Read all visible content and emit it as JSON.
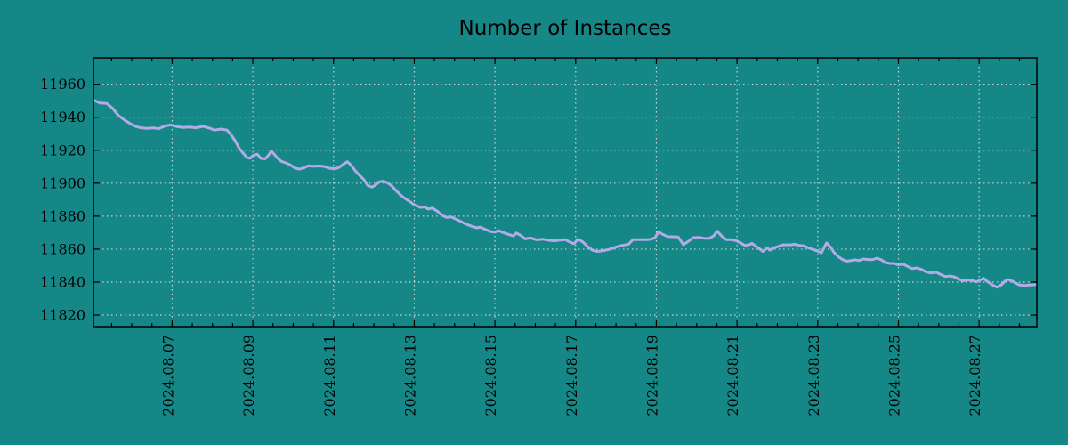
{
  "title": "Number of Instances",
  "colors": {
    "background": "#168787",
    "line": "#b3aae6",
    "grid": "#dcdcdc",
    "frame": "#000000",
    "text": "#000000"
  },
  "chart_data": {
    "type": "line",
    "title": "Number of Instances",
    "xlabel": "",
    "ylabel": "",
    "grid": "dotted",
    "legend": "none",
    "x_axis": {
      "unit": "date (August 2024, day of month)",
      "lim": [
        5.05,
        28.43
      ],
      "tick_days": [
        7,
        9,
        11,
        13,
        15,
        17,
        19,
        21,
        23,
        25,
        27
      ],
      "tick_labels": [
        "2024.08.07",
        "2024.08.09",
        "2024.08.11",
        "2024.08.13",
        "2024.08.15",
        "2024.08.17",
        "2024.08.19",
        "2024.08.21",
        "2024.08.23",
        "2024.08.25",
        "2024.08.27"
      ],
      "minor_step_days": 0.5
    },
    "y_axis": {
      "lim": [
        11813,
        11976
      ],
      "ticks": [
        11820,
        11840,
        11860,
        11880,
        11900,
        11920,
        11940,
        11960
      ],
      "tick_labels": [
        "11820",
        "11840",
        "11860",
        "11880",
        "11900",
        "11920",
        "11940",
        "11960"
      ]
    },
    "series": [
      {
        "name": "Number of Instances",
        "x_days": [
          5.05,
          5.21,
          5.38,
          5.52,
          5.67,
          5.82,
          5.98,
          6.09,
          6.22,
          6.38,
          6.53,
          6.66,
          6.84,
          6.97,
          7.13,
          7.28,
          7.43,
          7.59,
          7.77,
          7.92,
          8.05,
          8.21,
          8.36,
          8.45,
          8.56,
          8.67,
          8.76,
          8.85,
          8.93,
          9.02,
          9.11,
          9.2,
          9.31,
          9.4,
          9.46,
          9.55,
          9.62,
          9.71,
          9.82,
          9.93,
          10.04,
          10.15,
          10.26,
          10.37,
          10.5,
          10.63,
          10.76,
          10.9,
          11.01,
          11.12,
          11.23,
          11.34,
          11.43,
          11.54,
          11.65,
          11.76,
          11.84,
          11.95,
          12.04,
          12.13,
          12.24,
          12.35,
          12.44,
          12.55,
          12.66,
          12.77,
          12.88,
          13.01,
          13.15,
          13.26,
          13.34,
          13.45,
          13.57,
          13.68,
          13.79,
          13.92,
          14.03,
          14.14,
          14.27,
          14.42,
          14.56,
          14.64,
          14.76,
          14.89,
          15.0,
          15.09,
          15.22,
          15.35,
          15.46,
          15.53,
          15.64,
          15.75,
          15.88,
          16.03,
          16.19,
          16.34,
          16.48,
          16.63,
          16.74,
          16.85,
          16.96,
          17.05,
          17.18,
          17.29,
          17.42,
          17.53,
          17.67,
          17.82,
          17.95,
          18.08,
          18.2,
          18.31,
          18.42,
          18.57,
          18.72,
          18.86,
          18.97,
          19.05,
          19.16,
          19.28,
          19.41,
          19.54,
          19.67,
          19.8,
          19.91,
          20.07,
          20.18,
          20.31,
          20.42,
          20.51,
          20.62,
          20.73,
          20.86,
          20.97,
          21.08,
          21.19,
          21.3,
          21.37,
          21.48,
          21.64,
          21.75,
          21.81,
          21.92,
          22.03,
          22.14,
          22.32,
          22.43,
          22.54,
          22.65,
          22.8,
          22.98,
          23.09,
          23.22,
          23.33,
          23.4,
          23.51,
          23.62,
          23.73,
          23.84,
          23.91,
          24.02,
          24.13,
          24.28,
          24.37,
          24.46,
          24.57,
          24.68,
          24.79,
          24.9,
          24.99,
          25.12,
          25.23,
          25.34,
          25.45,
          25.56,
          25.67,
          25.8,
          25.94,
          26.05,
          26.16,
          26.27,
          26.38,
          26.49,
          26.6,
          26.71,
          26.82,
          26.93,
          27.04,
          27.11,
          27.22,
          27.33,
          27.44,
          27.55,
          27.66,
          27.72,
          27.88,
          27.99,
          28.14,
          28.27,
          28.43
        ],
        "values": [
          11950.4,
          11948.6,
          11948.3,
          11945.5,
          11941.0,
          11938.3,
          11935.8,
          11934.5,
          11933.6,
          11933.2,
          11933.6,
          11933.0,
          11934.8,
          11935.3,
          11934.2,
          11933.8,
          11934.0,
          11933.6,
          11934.5,
          11933.4,
          11932.2,
          11932.8,
          11932.2,
          11929.8,
          11925.8,
          11920.9,
          11918.2,
          11915.6,
          11915.1,
          11917.0,
          11917.6,
          11915.0,
          11914.8,
          11917.3,
          11919.6,
          11917.0,
          11915.0,
          11913.2,
          11912.3,
          11911.0,
          11909.2,
          11908.5,
          11909.2,
          11910.5,
          11910.3,
          11910.4,
          11910.2,
          11909.0,
          11908.8,
          11909.3,
          11911.3,
          11913.0,
          11911.0,
          11907.5,
          11904.6,
          11902.0,
          11898.8,
          11897.6,
          11898.8,
          11900.8,
          11901.2,
          11900.0,
          11898.5,
          11895.5,
          11892.8,
          11890.8,
          11889.0,
          11886.8,
          11885.3,
          11885.6,
          11884.3,
          11884.9,
          11883.0,
          11880.6,
          11879.3,
          11879.5,
          11878.2,
          11877.0,
          11875.3,
          11873.9,
          11872.9,
          11873.4,
          11872.0,
          11870.7,
          11870.4,
          11871.2,
          11869.9,
          11868.8,
          11868.0,
          11869.8,
          11868.3,
          11866.2,
          11866.8,
          11865.7,
          11866.0,
          11865.4,
          11865.0,
          11865.5,
          11865.8,
          11864.4,
          11863.2,
          11866.0,
          11864.4,
          11861.7,
          11859.3,
          11858.6,
          11859.0,
          11859.8,
          11860.8,
          11861.9,
          11862.5,
          11863.0,
          11865.8,
          11865.8,
          11865.8,
          11865.9,
          11867.0,
          11870.6,
          11868.9,
          11867.6,
          11867.5,
          11867.4,
          11862.7,
          11864.8,
          11867.0,
          11867.1,
          11866.6,
          11866.5,
          11868.0,
          11870.9,
          11867.9,
          11865.8,
          11865.8,
          11865.2,
          11863.9,
          11862.3,
          11862.6,
          11863.5,
          11861.5,
          11858.6,
          11860.8,
          11859.4,
          11860.9,
          11861.7,
          11862.6,
          11862.6,
          11862.9,
          11862.2,
          11862.0,
          11860.5,
          11859.0,
          11857.7,
          11863.8,
          11860.8,
          11858.1,
          11855.4,
          11853.6,
          11852.7,
          11853.1,
          11853.6,
          11853.1,
          11854.0,
          11853.6,
          11853.7,
          11854.5,
          11853.6,
          11851.8,
          11851.3,
          11851.3,
          11850.5,
          11850.9,
          11849.5,
          11848.2,
          11848.6,
          11847.8,
          11846.4,
          11845.5,
          11845.9,
          11844.6,
          11843.4,
          11843.7,
          11843.2,
          11841.9,
          11840.7,
          11841.4,
          11841.0,
          11840.1,
          11841.4,
          11842.3,
          11840.1,
          11838.3,
          11836.9,
          11838.3,
          11841.0,
          11841.6,
          11839.8,
          11838.3,
          11838.0,
          11838.3,
          11838.5
        ]
      }
    ]
  }
}
